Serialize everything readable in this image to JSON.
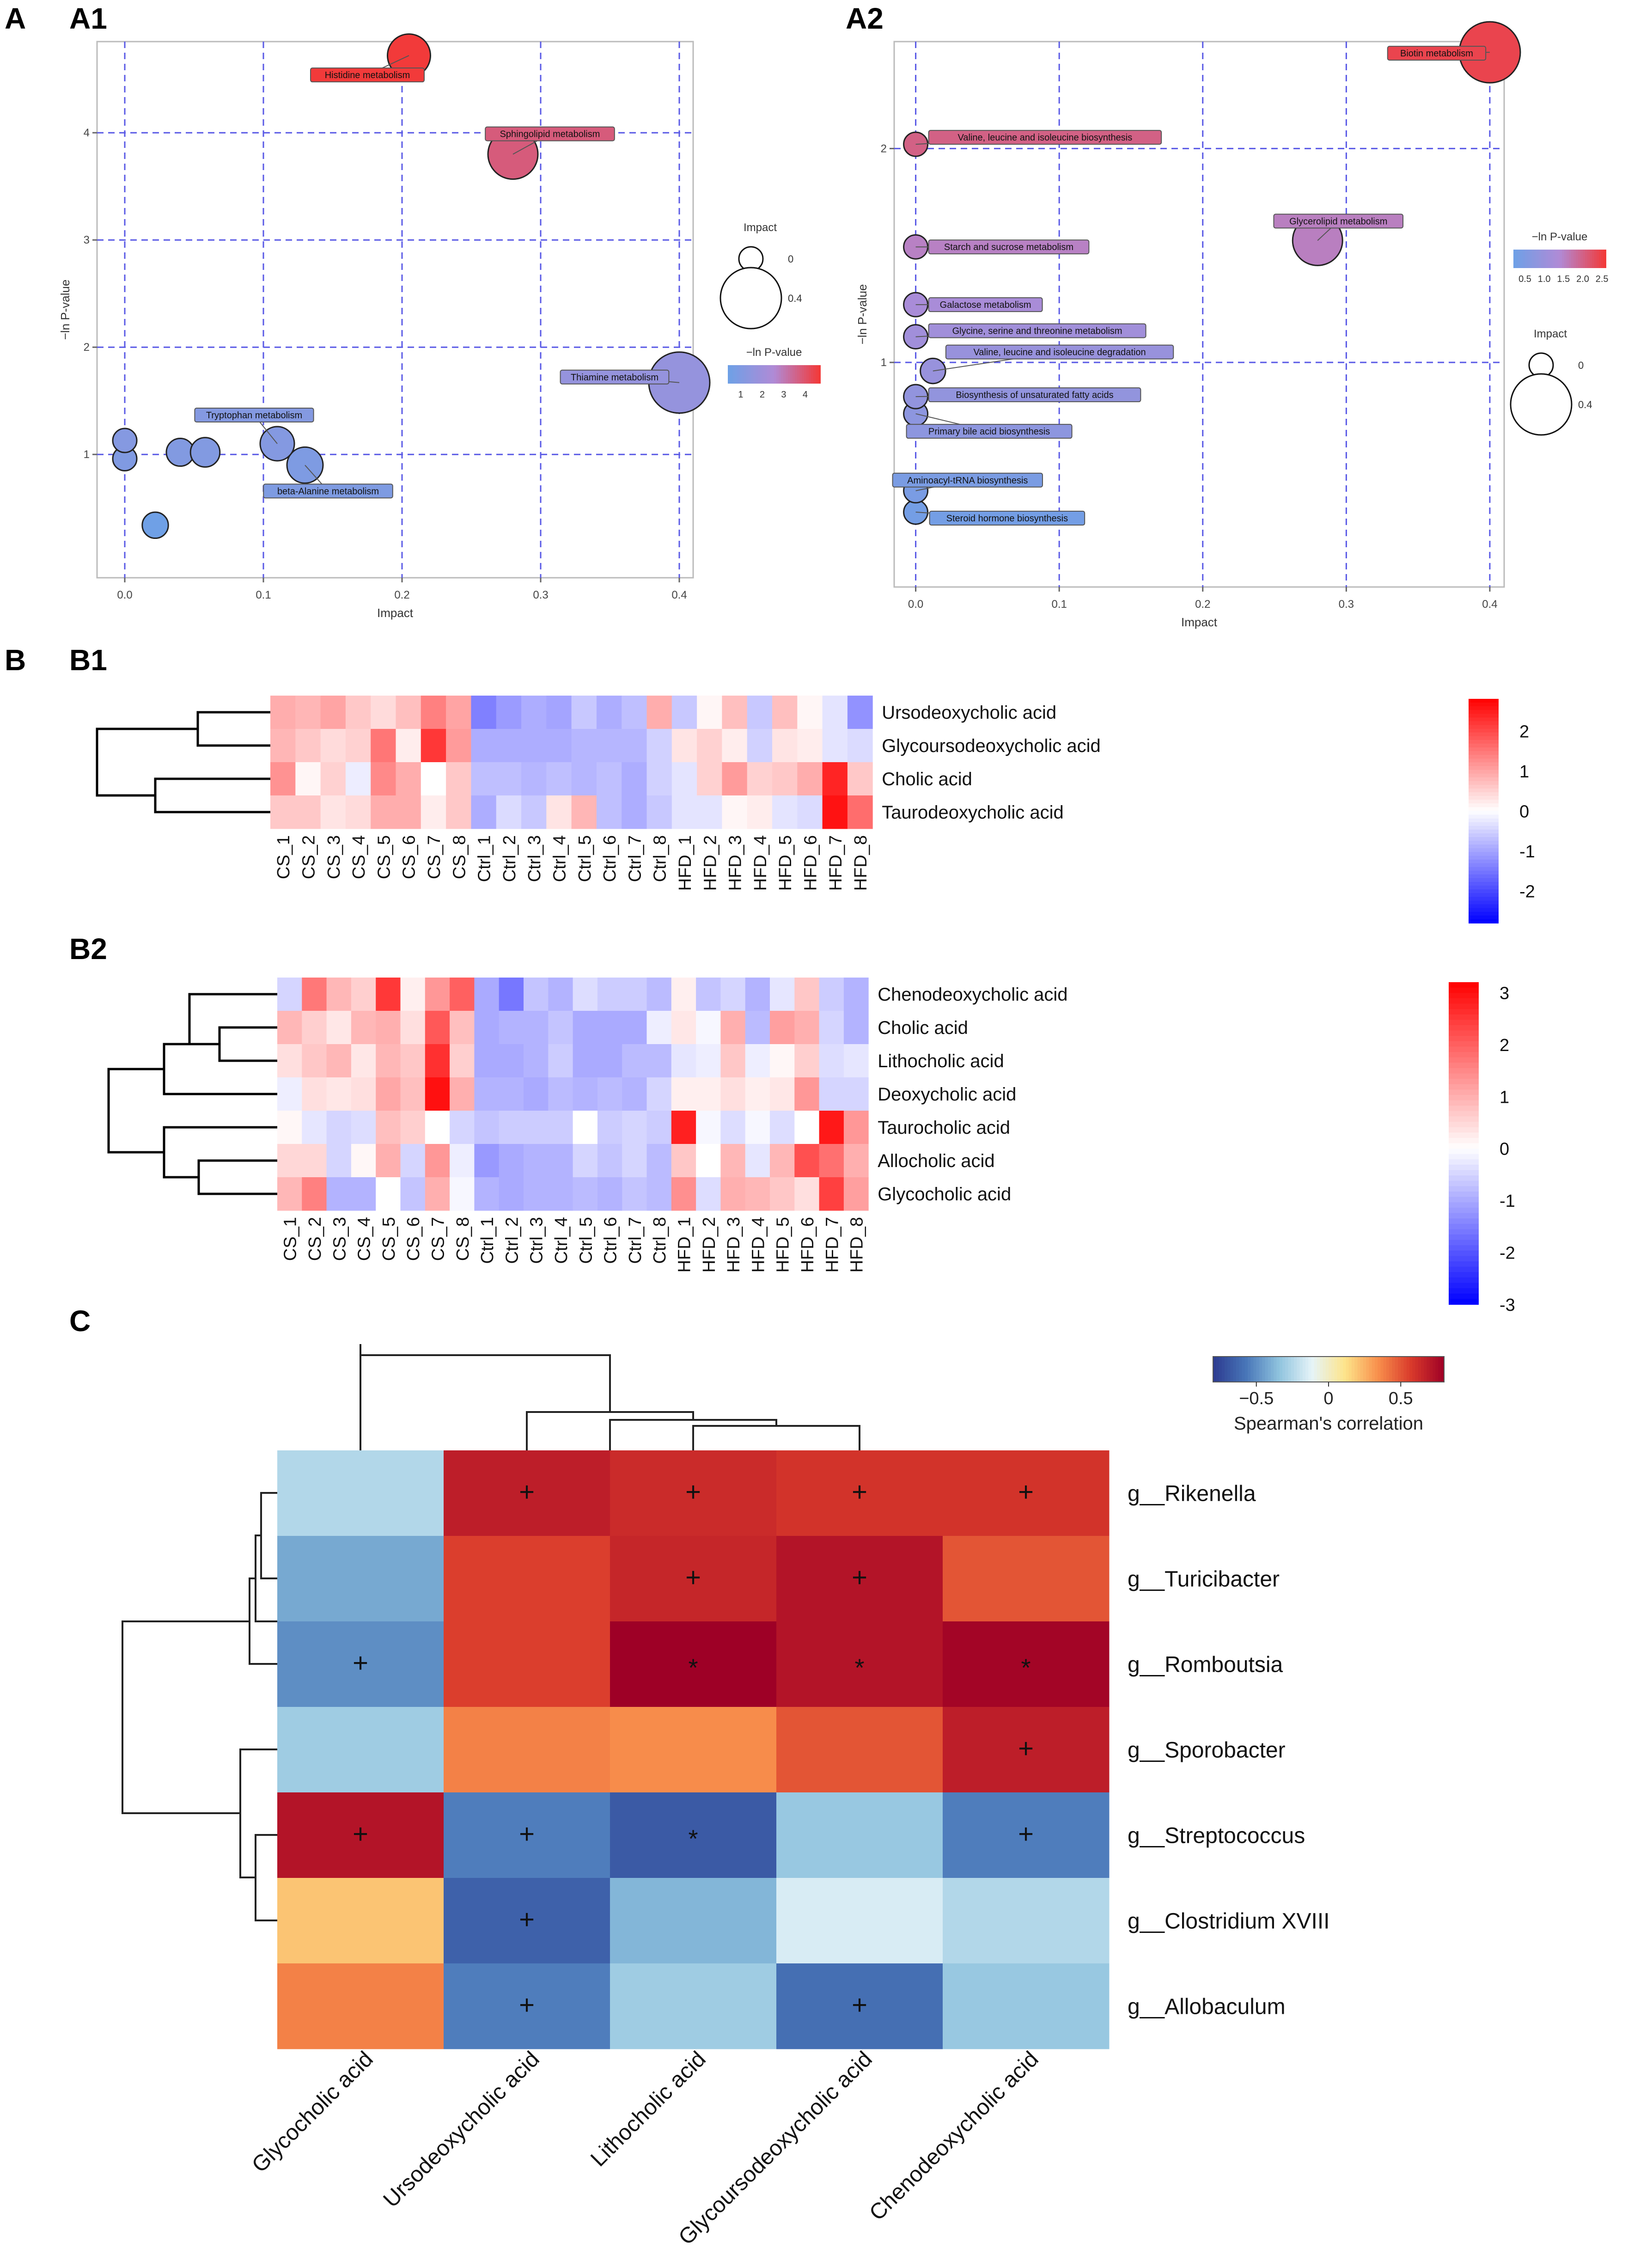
{
  "panels": {
    "A": "A",
    "A1": "A1",
    "A2": "A2",
    "B": "B",
    "B1": "B1",
    "B2": "B2",
    "C": "C"
  },
  "chart_data": [
    {
      "id": "A1",
      "type": "scatter",
      "xlabel": "Impact",
      "ylabel": "−ln P-value",
      "xlim": [
        -0.02,
        0.41
      ],
      "ylim": [
        -0.15,
        4.85
      ],
      "xticks": [
        0.0,
        0.1,
        0.2,
        0.3,
        0.4
      ],
      "xtick_labels": [
        "0.0",
        "0.1",
        "0.2",
        "0.3",
        "0.4"
      ],
      "yticks": [
        1,
        2,
        3,
        4
      ],
      "ytick_labels": [
        "1",
        "2",
        "3",
        "4"
      ],
      "size_legend": {
        "title": "Impact",
        "values": [
          0,
          0.4
        ],
        "labels": [
          "0",
          "0.4"
        ]
      },
      "color_legend": {
        "title": "−ln P-value",
        "min": 0.4,
        "max": 4.7,
        "ticks": [
          1,
          2,
          3,
          4
        ],
        "tick_labels": [
          "1",
          "2",
          "3",
          "4"
        ],
        "low_color": "#6fa0e6",
        "mid_color": "#b08ad6",
        "high_color": "#f23a3a"
      },
      "points": [
        {
          "label": "Histidine metabolism",
          "impact": 0.205,
          "value": 4.72
        },
        {
          "label": "Sphingolipid metabolism",
          "impact": 0.28,
          "value": 3.8
        },
        {
          "label": "Thiamine metabolism",
          "impact": 0.4,
          "value": 1.67
        },
        {
          "label": "Tryptophan metabolism",
          "impact": 0.11,
          "value": 1.1
        },
        {
          "label": "beta-Alanine metabolism",
          "impact": 0.13,
          "value": 0.9
        },
        {
          "label": "",
          "impact": 0.0,
          "value": 1.13
        },
        {
          "label": "",
          "impact": 0.0,
          "value": 0.96
        },
        {
          "label": "",
          "impact": 0.04,
          "value": 1.02
        },
        {
          "label": "",
          "impact": 0.058,
          "value": 1.02
        },
        {
          "label": "",
          "impact": 0.022,
          "value": 0.34
        }
      ]
    },
    {
      "id": "A2",
      "type": "scatter",
      "xlabel": "Impact",
      "ylabel": "−ln P-value",
      "xlim": [
        -0.015,
        0.41
      ],
      "ylim": [
        -0.05,
        2.5
      ],
      "xticks": [
        0.0,
        0.1,
        0.2,
        0.3,
        0.4
      ],
      "xtick_labels": [
        "0.0",
        "0.1",
        "0.2",
        "0.3",
        "0.4"
      ],
      "yticks": [
        1,
        2
      ],
      "ytick_labels": [
        "1",
        "2"
      ],
      "size_legend": {
        "title": "Impact",
        "values": [
          0,
          0.4
        ],
        "labels": [
          "0",
          "0.4"
        ]
      },
      "color_legend": {
        "title": "−ln P-value",
        "min": 0.2,
        "max": 2.6,
        "ticks": [
          0.5,
          1.0,
          1.5,
          2.0,
          2.5
        ],
        "tick_labels": [
          "0.5",
          "1.0",
          "1.5",
          "2.0",
          "2.5"
        ],
        "low_color": "#6fa0e6",
        "mid_color": "#b08ad6",
        "high_color": "#f23a3a"
      },
      "points": [
        {
          "label": "Biotin metabolism",
          "impact": 0.4,
          "value": 2.45
        },
        {
          "label": "Valine, leucine and isoleucine biosynthesis",
          "impact": 0.0,
          "value": 2.02
        },
        {
          "label": "Glycerolipid metabolism",
          "impact": 0.28,
          "value": 1.57
        },
        {
          "label": "Starch and sucrose metabolism",
          "impact": 0.0,
          "value": 1.54
        },
        {
          "label": "Galactose metabolism",
          "impact": 0.0,
          "value": 1.27
        },
        {
          "label": "Glycine, serine and threonine metabolism",
          "impact": 0.0,
          "value": 1.12
        },
        {
          "label": "Valine, leucine and isoleucine degradation",
          "impact": 0.012,
          "value": 0.96
        },
        {
          "label": "Biosynthesis of unsaturated fatty acids",
          "impact": 0.0,
          "value": 0.84
        },
        {
          "label": "Primary bile acid biosynthesis",
          "impact": 0.0,
          "value": 0.76
        },
        {
          "label": "Aminoacyl-tRNA biosynthesis",
          "impact": 0.0,
          "value": 0.4
        },
        {
          "label": "Steroid hormone biosynthesis",
          "impact": 0.0,
          "value": 0.3
        }
      ]
    },
    {
      "id": "B1",
      "type": "heatmap",
      "columns": [
        "CS_1",
        "CS_2",
        "CS_3",
        "CS_4",
        "CS_5",
        "CS_6",
        "CS_7",
        "CS_8",
        "Ctrl_1",
        "Ctrl_2",
        "Ctrl_3",
        "Ctrl_4",
        "Ctrl_5",
        "Ctrl_6",
        "Ctrl_7",
        "Ctrl_8",
        "HFD_1",
        "HFD_2",
        "HFD_3",
        "HFD_4",
        "HFD_5",
        "HFD_6",
        "HFD_7",
        "HFD_8"
      ],
      "rows": [
        "Ursodeoxycholic acid",
        "Glycoursodeoxycholic acid",
        "Cholic acid",
        "Taurodeoxycholic acid"
      ],
      "values": [
        [
          0.9,
          0.8,
          1.0,
          0.6,
          0.4,
          0.7,
          1.4,
          1.0,
          -1.4,
          -1.1,
          -0.9,
          -1.0,
          -0.6,
          -0.9,
          -0.7,
          0.9,
          -0.6,
          0.1,
          0.7,
          -0.6,
          0.7,
          0.1,
          -0.3,
          -1.2
        ],
        [
          0.8,
          0.6,
          0.4,
          0.5,
          1.5,
          0.2,
          2.2,
          1.1,
          -0.9,
          -0.9,
          -0.9,
          -0.9,
          -0.8,
          -0.8,
          -0.8,
          -0.5,
          0.3,
          0.5,
          0.2,
          -0.5,
          0.3,
          0.2,
          -0.3,
          -0.4
        ],
        [
          1.2,
          0.1,
          0.5,
          -0.2,
          1.3,
          0.9,
          0.0,
          0.6,
          -0.7,
          -0.7,
          -0.8,
          -0.7,
          -0.8,
          -0.7,
          -0.9,
          -0.5,
          -0.3,
          0.5,
          1.1,
          0.5,
          0.6,
          0.9,
          2.4,
          0.6
        ],
        [
          0.6,
          0.6,
          0.3,
          0.4,
          0.9,
          0.9,
          0.2,
          0.6,
          -0.9,
          -0.4,
          -0.6,
          0.3,
          0.8,
          -0.7,
          -0.9,
          -0.6,
          -0.3,
          -0.3,
          0.1,
          0.2,
          -0.3,
          -0.4,
          2.6,
          1.6
        ]
      ],
      "tree_order": [
        0,
        1,
        2,
        3
      ],
      "color_scale": {
        "min": -2.8,
        "max": 2.8,
        "ticks": [
          2,
          1,
          0,
          -1,
          -2
        ],
        "tick_labels": [
          "2",
          "1",
          "0",
          "-1",
          "-2"
        ],
        "low": "#0000ff",
        "mid": "#ffffff",
        "high": "#ff0000"
      }
    },
    {
      "id": "B2",
      "type": "heatmap",
      "columns": [
        "CS_1",
        "CS_2",
        "CS_3",
        "CS_4",
        "CS_5",
        "CS_6",
        "CS_7",
        "CS_8",
        "Ctrl_1",
        "Ctrl_2",
        "Ctrl_3",
        "Ctrl_4",
        "Ctrl_5",
        "Ctrl_6",
        "Ctrl_7",
        "Ctrl_8",
        "HFD_1",
        "HFD_2",
        "HFD_3",
        "HFD_4",
        "HFD_5",
        "HFD_6",
        "HFD_7",
        "HFD_8"
      ],
      "rows": [
        "Chenodeoxycholic acid",
        "Cholic acid",
        "Lithocholic acid",
        "Deoxycholic acid",
        "Taurocholic acid",
        "Allocholic acid",
        "Glycocholic acid"
      ],
      "values": [
        [
          -0.5,
          1.7,
          0.9,
          0.6,
          2.5,
          0.2,
          1.3,
          2.0,
          -1.0,
          -1.6,
          -0.7,
          -0.9,
          -0.4,
          -0.6,
          -0.6,
          -0.8,
          0.2,
          -0.7,
          -0.5,
          -0.9,
          -0.3,
          0.7,
          -0.6,
          -0.9
        ],
        [
          0.9,
          0.6,
          0.3,
          0.9,
          1.0,
          0.4,
          2.1,
          0.8,
          -1.0,
          -0.9,
          -0.9,
          -0.7,
          -1.0,
          -1.0,
          -1.0,
          -0.2,
          0.3,
          -0.1,
          1.0,
          -0.8,
          1.2,
          1.0,
          -0.5,
          -0.9
        ],
        [
          0.4,
          0.7,
          0.9,
          0.3,
          0.9,
          0.7,
          2.6,
          0.6,
          -1.0,
          -1.0,
          -0.9,
          -0.6,
          -1.0,
          -1.0,
          -0.8,
          -0.8,
          -0.3,
          -0.2,
          0.7,
          -0.2,
          0.1,
          0.6,
          -0.4,
          -0.3
        ],
        [
          -0.2,
          0.4,
          0.3,
          0.4,
          1.1,
          0.8,
          3.0,
          1.0,
          -0.9,
          -0.9,
          -1.0,
          -0.8,
          -0.9,
          -0.8,
          -0.9,
          -0.5,
          0.2,
          0.2,
          0.4,
          0.2,
          0.3,
          1.3,
          -0.5,
          -0.5
        ],
        [
          0.1,
          -0.3,
          -0.5,
          -0.4,
          0.8,
          0.6,
          0.0,
          -0.5,
          -0.7,
          -0.6,
          -0.6,
          -0.6,
          0.0,
          -0.6,
          -0.5,
          -0.6,
          2.8,
          -0.1,
          -0.4,
          -0.1,
          -0.4,
          0.0,
          2.9,
          1.3
        ],
        [
          0.5,
          0.5,
          -0.5,
          0.1,
          1.0,
          -0.5,
          1.3,
          -0.2,
          -1.2,
          -1.0,
          -0.9,
          -0.9,
          -0.5,
          -0.7,
          -0.5,
          -0.8,
          0.7,
          0.0,
          0.9,
          -0.3,
          0.9,
          2.2,
          1.8,
          1.0
        ],
        [
          0.9,
          1.6,
          -0.9,
          -0.9,
          0.0,
          -0.7,
          1.0,
          -0.1,
          -0.9,
          -1.0,
          -0.9,
          -0.9,
          -0.8,
          -0.9,
          -0.7,
          -0.8,
          1.4,
          -0.4,
          1.0,
          0.9,
          0.7,
          0.4,
          2.4,
          1.2
        ]
      ],
      "color_scale": {
        "min": -3,
        "max": 3.2,
        "ticks": [
          3,
          2,
          1,
          0,
          -1,
          -2,
          -3
        ],
        "tick_labels": [
          "3",
          "2",
          "1",
          "0",
          "-1",
          "-2",
          "-3"
        ],
        "low": "#0000ff",
        "mid": "#ffffff",
        "high": "#ff0000"
      }
    },
    {
      "id": "C",
      "type": "heatmap",
      "columns": [
        "Glycocholic acid",
        "Ursodeoxycholic acid",
        "Lithocholic acid",
        "Glycoursodeoxycholic acid",
        "Chenodeoxycholic acid"
      ],
      "rows": [
        "g__Rikenella",
        "g__Turicibacter",
        "g__Romboutsia",
        "g__Sporobacter",
        "g__Streptococcus",
        "g__Clostridium XVIII",
        "g__Allobaculum"
      ],
      "values": [
        [
          -0.25,
          0.68,
          0.63,
          0.6,
          0.6
        ],
        [
          -0.42,
          0.56,
          0.65,
          0.72,
          0.5
        ],
        [
          -0.5,
          0.56,
          0.85,
          0.72,
          0.78
        ],
        [
          -0.3,
          0.38,
          0.35,
          0.5,
          0.68
        ],
        [
          0.72,
          -0.55,
          -0.68,
          -0.32,
          -0.55
        ],
        [
          0.2,
          -0.65,
          -0.38,
          -0.15,
          -0.25
        ],
        [
          0.38,
          -0.55,
          -0.3,
          -0.6,
          -0.32
        ]
      ],
      "significance": [
        [
          "",
          "+",
          "+",
          "+",
          "+"
        ],
        [
          "",
          "",
          "+",
          "+",
          ""
        ],
        [
          "+",
          "",
          "*",
          "*",
          "*"
        ],
        [
          "",
          "",
          "",
          "",
          "+"
        ],
        [
          "+",
          "+",
          "*",
          "",
          "+"
        ],
        [
          "",
          "+",
          "",
          "",
          ""
        ],
        [
          "",
          "+",
          "",
          "+",
          ""
        ]
      ],
      "color_scale": {
        "title": "Spearman's correlation",
        "min": -0.8,
        "max": 0.8,
        "ticks": [
          -0.5,
          0,
          0.5
        ],
        "tick_labels": [
          "−0.5",
          "0",
          "0.5"
        ],
        "stops": [
          "#2c3a8f",
          "#4876b8",
          "#8fc3de",
          "#e6f4f8",
          "#fde48a",
          "#f88f4c",
          "#d93a2b",
          "#9e0026"
        ]
      }
    }
  ]
}
